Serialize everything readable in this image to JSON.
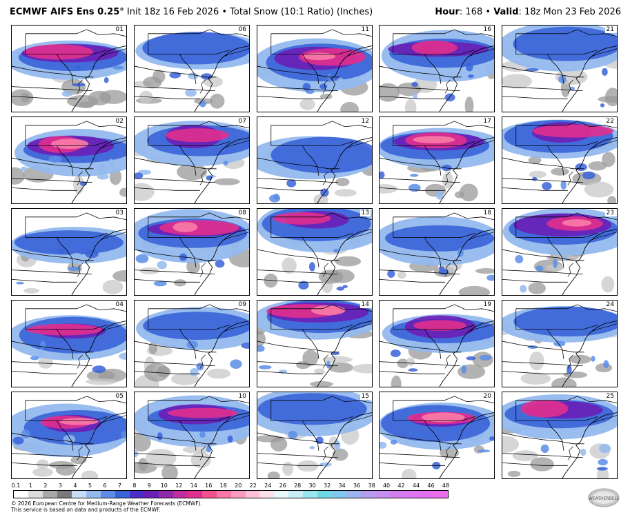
{
  "header": {
    "title_bold": "ECMWF AIFS Ens 0.25",
    "degree": "°",
    "subtitle": "Init 18z 16 Feb 2026 • Total Snow (10:1 Ratio) (Inches)",
    "hour_label": "Hour",
    "hour_value": ": 168 •",
    "valid_label": "Valid",
    "valid_value": ": 18z Mon 23 Feb 2026"
  },
  "members": [
    "01",
    "06",
    "11",
    "16",
    "21",
    "02",
    "07",
    "12",
    "17",
    "22",
    "03",
    "08",
    "13",
    "18",
    "23",
    "04",
    "09",
    "14",
    "19",
    "24",
    "05",
    "10",
    "15",
    "20",
    "25"
  ],
  "colorbar": {
    "ticks": [
      "0.1",
      "1",
      "2",
      "3",
      "4",
      "5",
      "6",
      "7",
      "8",
      "9",
      "10",
      "12",
      "14",
      "16",
      "18",
      "20",
      "22",
      "24",
      "26",
      "28",
      "30",
      "32",
      "34",
      "36",
      "38",
      "40",
      "42",
      "44",
      "46",
      "48"
    ],
    "colors": [
      "#ffffff",
      "#dcdcdc",
      "#a9a9a9",
      "#7a7a7a",
      "#c7dcf5",
      "#93b9ee",
      "#5b8de6",
      "#3a63d8",
      "#4b2ec9",
      "#6a1fb5",
      "#8f2aa8",
      "#bf2d9f",
      "#e0308f",
      "#f2508f",
      "#f877a6",
      "#fa9cc0",
      "#fdc0d8",
      "#fde0ec",
      "#e9f7fb",
      "#c6f0f5",
      "#98e6ee",
      "#6fd9e6",
      "#82c7ee",
      "#9fb1f0",
      "#b59df0",
      "#c78df0",
      "#d27ef0",
      "#dc75ef",
      "#e46fee",
      "#ea6dec"
    ]
  },
  "footer": {
    "copyright": "© 2026 European Centre for Medium-Range Weather Forecasts (ECMWF).",
    "service": "This service is based on data and products of the ECMWF.",
    "logo_text": "WEATHERBELL"
  }
}
